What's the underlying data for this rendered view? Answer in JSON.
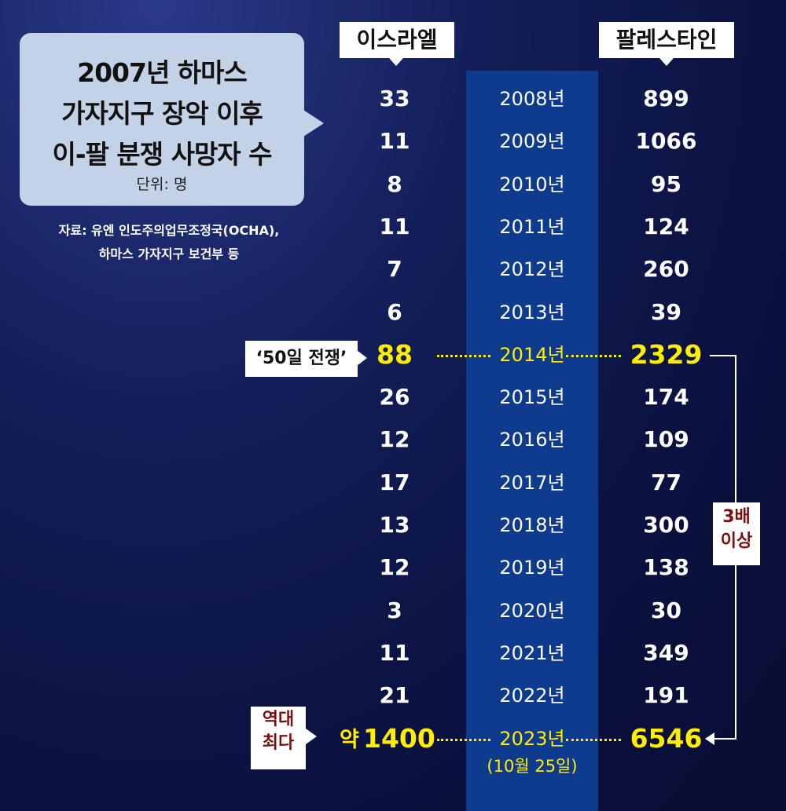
{
  "title_lines": [
    "2007년 하마스",
    "가자지구 장악 이후",
    "이-팔 분쟁 사망자 수"
  ],
  "unit": "단위: 명",
  "source_lines": [
    "자료: 유엔 인도주의업무조정국(OCHA),",
    "하마스 가자지구 보건부 등"
  ],
  "columns": {
    "left": "이스라엘",
    "right": "팔레스타인"
  },
  "annotations": {
    "war_2014": "‘50일 전쟁’",
    "record_line1": "역대",
    "record_line2": "최다",
    "approx_prefix": "약",
    "ratio_line1": "3배",
    "ratio_line2": "이상",
    "note_2023": "(10월 25일)"
  },
  "colors": {
    "highlight": "#ffee00",
    "band": "#0e3b8e",
    "bubble": "#c3d2e6",
    "accent_red": "#7a1010"
  },
  "chart_data": {
    "type": "table",
    "categories": [
      "2008년",
      "2009년",
      "2010년",
      "2011년",
      "2012년",
      "2013년",
      "2014년",
      "2015년",
      "2016년",
      "2017년",
      "2018년",
      "2019년",
      "2020년",
      "2021년",
      "2022년",
      "2023년"
    ],
    "series": [
      {
        "name": "이스라엘",
        "values": [
          33,
          11,
          8,
          11,
          7,
          6,
          88,
          26,
          12,
          17,
          13,
          12,
          3,
          11,
          21,
          1400
        ]
      },
      {
        "name": "팔레스타인",
        "values": [
          899,
          1066,
          95,
          124,
          260,
          39,
          2329,
          174,
          109,
          77,
          300,
          138,
          30,
          349,
          191,
          6546
        ]
      }
    ],
    "highlight_categories": [
      "2014년",
      "2023년"
    ]
  }
}
